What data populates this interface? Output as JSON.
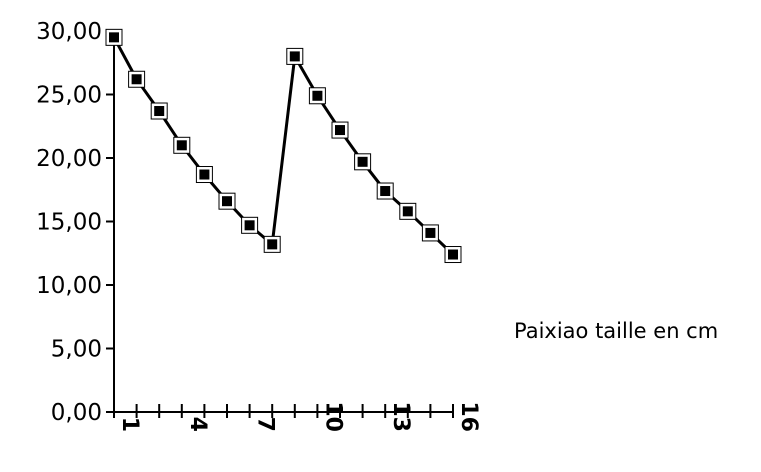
{
  "chart_data": {
    "type": "line",
    "title": "",
    "xlabel": "",
    "ylabel": "",
    "x": [
      1,
      2,
      3,
      4,
      5,
      6,
      7,
      8,
      9,
      10,
      11,
      12,
      13,
      14,
      15,
      16
    ],
    "x_tick_labels": [
      "1",
      "4",
      "7",
      "10",
      "13",
      "16"
    ],
    "ylim": [
      0,
      30
    ],
    "y_ticks": [
      "0,00",
      "5,00",
      "10,00",
      "15,00",
      "20,00",
      "25,00",
      "30,00"
    ],
    "series": [
      {
        "name": "Paixiao taille en cm",
        "values": [
          29.5,
          26.2,
          23.7,
          21.0,
          18.7,
          16.6,
          14.7,
          13.2,
          28.0,
          24.9,
          22.2,
          19.7,
          17.4,
          15.8,
          14.1,
          12.4
        ],
        "color": "#000000",
        "marker": "square"
      }
    ],
    "legend_position": "right",
    "grid": false
  }
}
